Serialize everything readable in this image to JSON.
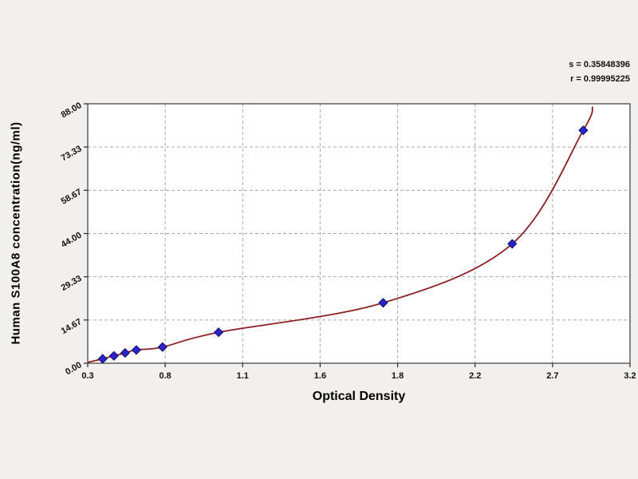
{
  "chart_data": {
    "type": "scatter",
    "title": "",
    "xlabel": "Optical Density",
    "ylabel": "Human S100A8 concentration(ng/ml)",
    "annotations": [
      "s = 0.35848396",
      "r = 0.99995225"
    ],
    "x_ticks": [
      "0.3",
      "0.8",
      "1.1",
      "1.6",
      "1.8",
      "2.2",
      "2.7",
      "3.2"
    ],
    "y_ticks": [
      "0.00",
      "14.67",
      "29.33",
      "44.00",
      "58.67",
      "73.33",
      "88.00"
    ],
    "x_range": [
      0.3,
      3.2
    ],
    "y_range": [
      0,
      88
    ],
    "grid": "dashed",
    "legend": "none",
    "series": [
      {
        "name": "standard-points",
        "marker": "diamond",
        "color": "#2a24c4",
        "edge_color": "#00005e",
        "points": [
          [
            0.38,
            1.5
          ],
          [
            0.44,
            2.5
          ],
          [
            0.5,
            3.5
          ],
          [
            0.56,
            4.5
          ],
          [
            0.7,
            5.5
          ],
          [
            1.0,
            10.5
          ],
          [
            1.88,
            20.5
          ],
          [
            2.57,
            40.5
          ],
          [
            2.95,
            79.0
          ]
        ]
      }
    ],
    "fit_curve": {
      "color": "#8b2022",
      "points": [
        [
          0.3,
          0.3
        ],
        [
          0.38,
          1.5
        ],
        [
          0.44,
          2.5
        ],
        [
          0.5,
          3.5
        ],
        [
          0.56,
          4.5
        ],
        [
          0.7,
          5.5
        ],
        [
          1.0,
          10.5
        ],
        [
          1.88,
          20.5
        ],
        [
          2.57,
          40.5
        ],
        [
          2.95,
          79.0
        ],
        [
          3.0,
          87.0
        ]
      ]
    },
    "colors": {
      "background": "#f1f0ee",
      "plot_background": "#ffffff",
      "gridline": "#a8a8a8",
      "border": "#3a3a3a"
    }
  }
}
